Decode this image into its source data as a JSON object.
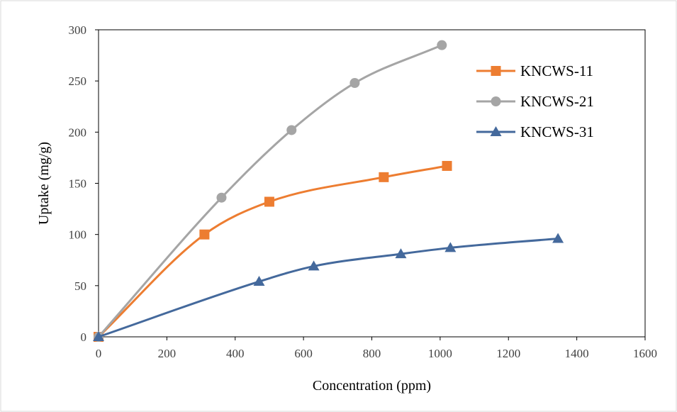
{
  "chart_data": {
    "type": "line",
    "title": "",
    "xlabel": "Concentration (ppm)",
    "ylabel": "Uptake (mg/g)",
    "xlim": [
      0,
      1600
    ],
    "ylim": [
      0,
      300
    ],
    "xticks": [
      0,
      200,
      400,
      600,
      800,
      1000,
      1200,
      1400,
      1600
    ],
    "yticks": [
      0,
      50,
      100,
      150,
      200,
      250,
      300
    ],
    "grid": false,
    "smooth": true,
    "legend_position": "top-right",
    "series": [
      {
        "name": "KNCWS-11",
        "color": "#ED7D31",
        "marker": "square",
        "x": [
          0,
          310,
          500,
          835,
          1020
        ],
        "y": [
          0,
          100,
          132,
          156,
          167
        ]
      },
      {
        "name": "KNCWS-21",
        "color": "#A5A5A5",
        "marker": "circle",
        "x": [
          0,
          360,
          565,
          750,
          1005
        ],
        "y": [
          0,
          136,
          202,
          248,
          285
        ]
      },
      {
        "name": "KNCWS-31",
        "color": "#44699C",
        "marker": "triangle",
        "x": [
          0,
          470,
          630,
          885,
          1030,
          1345
        ],
        "y": [
          0,
          54,
          69,
          81,
          87,
          96
        ]
      }
    ]
  }
}
